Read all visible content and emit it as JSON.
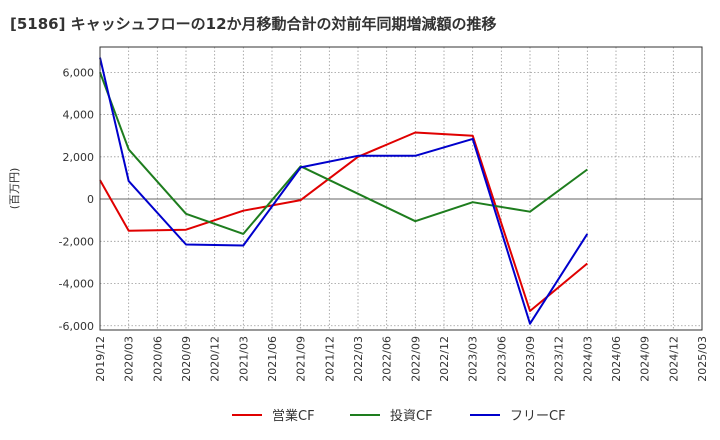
{
  "chart_data": {
    "type": "line",
    "title": "[5186]  キャッシュフローの12か月移動合計の対前年同期増減額の推移",
    "ylabel": "(百万円)",
    "xlabel": "",
    "x": [
      "2019/12",
      "2020/03",
      "2020/06",
      "2020/09",
      "2020/12",
      "2021/03",
      "2021/06",
      "2021/09",
      "2021/12",
      "2022/03",
      "2022/06",
      "2022/09",
      "2022/12",
      "2023/03",
      "2023/06",
      "2023/09",
      "2023/12",
      "2024/03",
      "2024/06",
      "2024/09",
      "2024/12",
      "2025/03"
    ],
    "yticks": [
      6000,
      4000,
      2000,
      0,
      -2000,
      -4000,
      -6000
    ],
    "ytick_labels": [
      "6,000",
      "4,000",
      "2,000",
      "0",
      "-2,000",
      "-4,000",
      "-6,000"
    ],
    "ylim": [
      -6200,
      7200
    ],
    "grid": true,
    "legend_position": "bottom",
    "series": [
      {
        "name": "営業CF",
        "color": "#e00000",
        "values": [
          900,
          -1500,
          null,
          -1450,
          null,
          -550,
          null,
          -50,
          null,
          2000,
          null,
          3150,
          null,
          3000,
          null,
          -5300,
          null,
          -3050,
          null,
          null,
          null,
          null
        ]
      },
      {
        "name": "投資CF",
        "color": "#1e7d1e",
        "values": [
          6000,
          2350,
          null,
          -700,
          null,
          -1650,
          null,
          1550,
          null,
          null,
          null,
          -1050,
          null,
          -150,
          null,
          -600,
          null,
          1400,
          null,
          null,
          null,
          null
        ]
      },
      {
        "name": "フリーCF",
        "color": "#0000cc",
        "values": [
          6700,
          850,
          null,
          -2150,
          null,
          -2200,
          null,
          1500,
          null,
          2050,
          null,
          2050,
          null,
          2850,
          null,
          -5900,
          null,
          -1650,
          null,
          null,
          null,
          null
        ]
      }
    ]
  }
}
